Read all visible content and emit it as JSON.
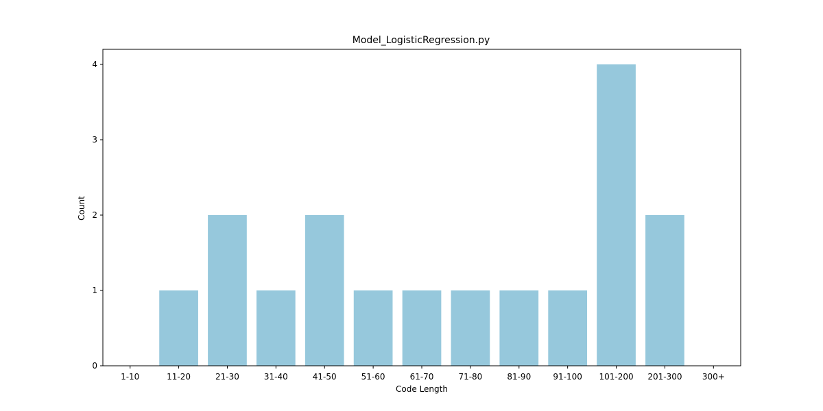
{
  "chart_data": {
    "type": "bar",
    "title": "Model_LogisticRegression.py",
    "xlabel": "Code Length",
    "ylabel": "Count",
    "categories": [
      "1-10",
      "11-20",
      "21-30",
      "31-40",
      "41-50",
      "51-60",
      "61-70",
      "71-80",
      "81-90",
      "91-100",
      "101-200",
      "201-300",
      "300+"
    ],
    "values": [
      0,
      1,
      2,
      1,
      2,
      1,
      1,
      1,
      1,
      1,
      4,
      2,
      0
    ],
    "yticks": [
      0,
      1,
      2,
      3,
      4
    ],
    "ylim": [
      0,
      4.2
    ],
    "grid": false,
    "bar_color": "#96c8dc"
  }
}
